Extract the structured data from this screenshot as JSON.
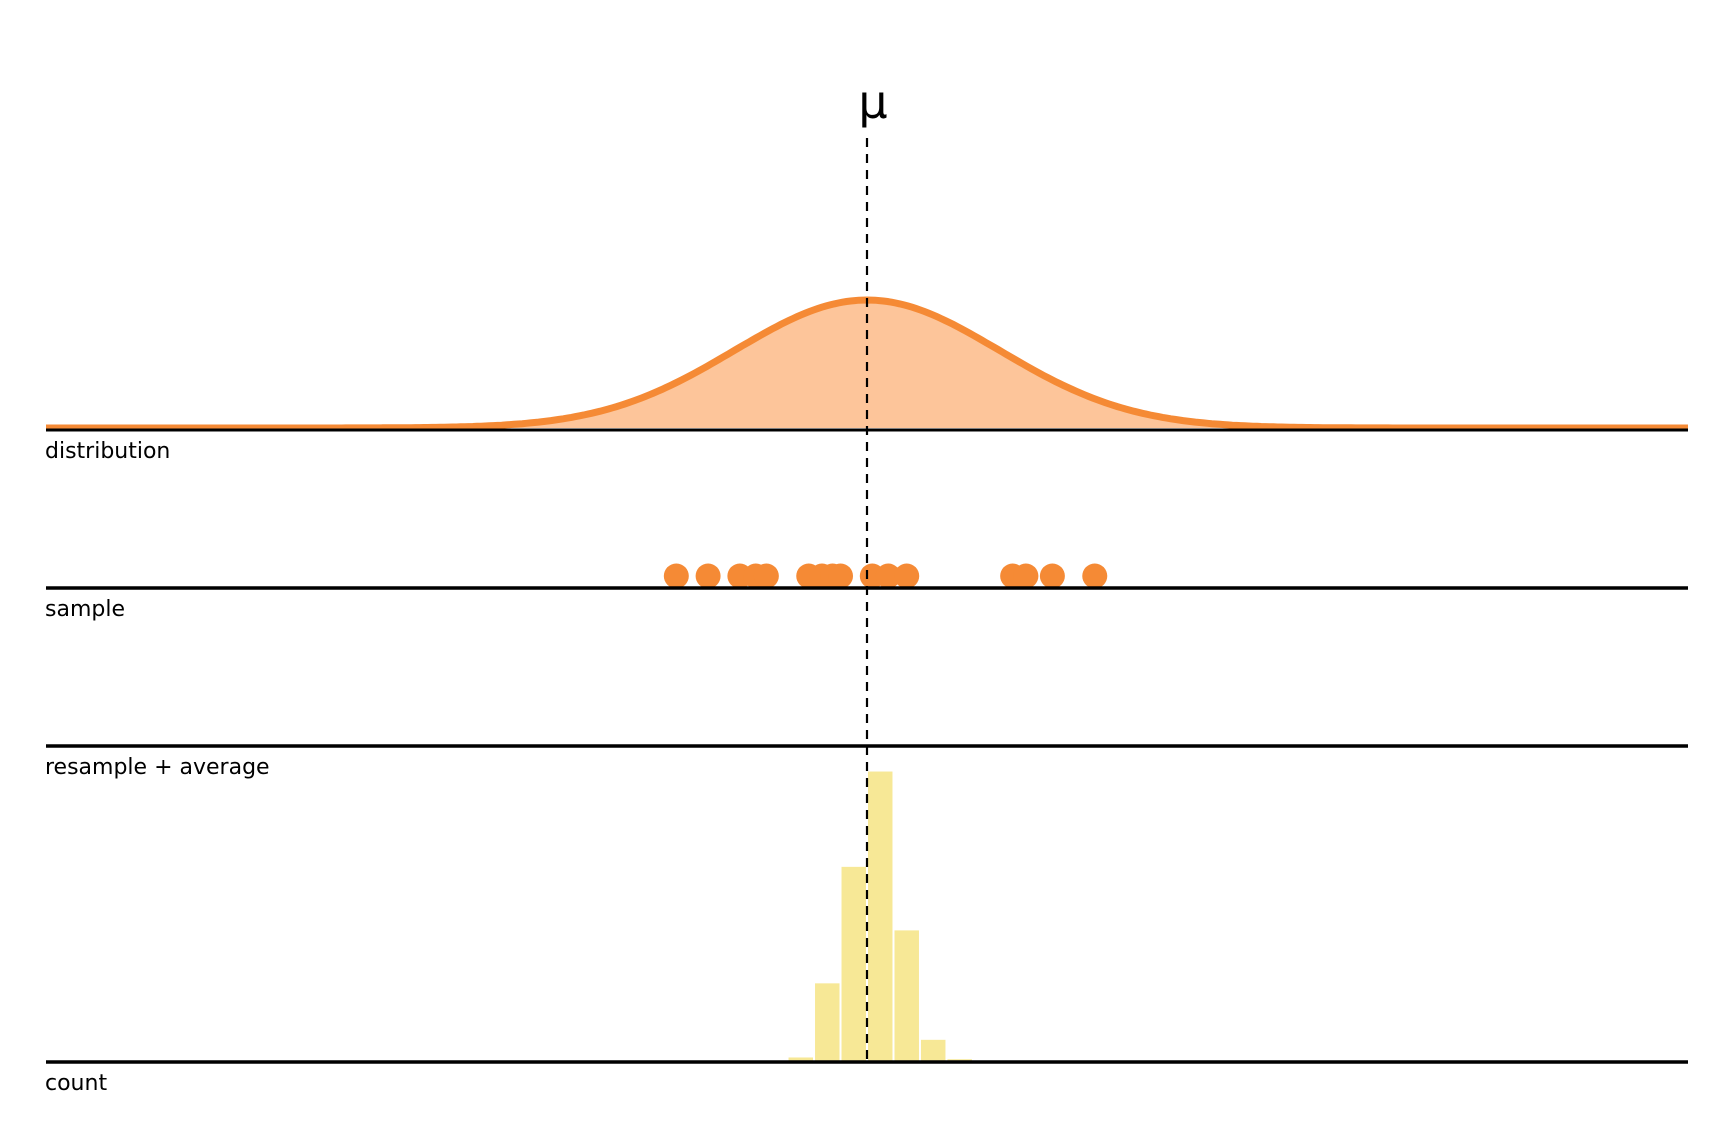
{
  "diagram": {
    "mean_label": "μ",
    "mean_value": 0,
    "x_range": [
      -3.1,
      3.1
    ],
    "panels": [
      {
        "id": "distribution",
        "label": "distribution"
      },
      {
        "id": "sample",
        "label": "sample"
      },
      {
        "id": "resample",
        "label": "resample + average"
      },
      {
        "id": "count",
        "label": "count"
      }
    ],
    "distribution": {
      "type": "normal",
      "mean": 0,
      "sd": 0.5
    },
    "sample_points": [
      -0.72,
      -0.6,
      -0.48,
      -0.42,
      -0.38,
      -0.22,
      -0.17,
      -0.13,
      -0.1,
      0.02,
      0.08,
      0.15,
      0.55,
      0.6,
      0.7,
      0.86
    ],
    "count_histogram": {
      "bin_width": 0.1,
      "bin_starts": [
        -0.3,
        -0.2,
        -0.1,
        0.0,
        0.1,
        0.2,
        0.3
      ],
      "counts": [
        1,
        22,
        55,
        82,
        37,
        6,
        0.5
      ]
    },
    "colors": {
      "curve_stroke": "#f58a35",
      "curve_fill": "#fdc59a",
      "points": "#f58a35",
      "bars": "#f7e896",
      "axis": "#000000"
    }
  }
}
